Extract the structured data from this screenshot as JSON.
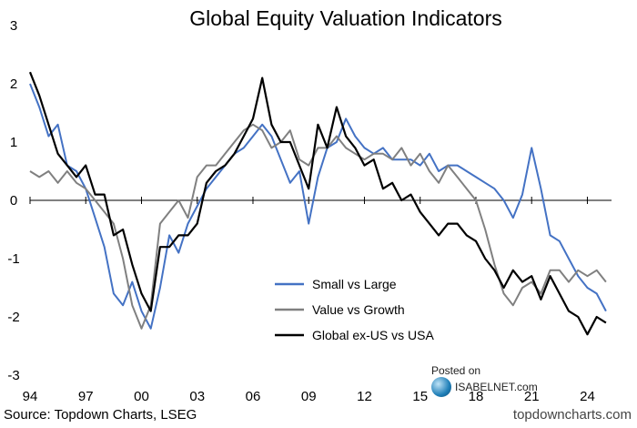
{
  "chart_data": {
    "type": "line",
    "title": "Global Equity Valuation Indicators",
    "xlabel": "",
    "ylabel": "",
    "xlim": [
      1994.0,
      2025.3
    ],
    "ylim": [
      -3,
      3
    ],
    "yticks": [
      3,
      2,
      1,
      0,
      -1,
      -2,
      -3
    ],
    "xticks": [
      {
        "label": "94",
        "value": 1994
      },
      {
        "label": "97",
        "value": 1997
      },
      {
        "label": "00",
        "value": 2000
      },
      {
        "label": "03",
        "value": 2003
      },
      {
        "label": "06",
        "value": 2006
      },
      {
        "label": "09",
        "value": 2009
      },
      {
        "label": "12",
        "value": 2012
      },
      {
        "label": "15",
        "value": 2015
      },
      {
        "label": "18",
        "value": 2018
      },
      {
        "label": "21",
        "value": 2021
      },
      {
        "label": "24",
        "value": 2024
      }
    ],
    "zero_line": true,
    "grid": false,
    "legend_position": "bottom-right",
    "series": [
      {
        "name": "Small vs Large",
        "color": "#4472C4",
        "x": [
          1994.0,
          1994.5,
          1995.0,
          1995.5,
          1996.0,
          1996.5,
          1997.0,
          1997.5,
          1998.0,
          1998.5,
          1999.0,
          1999.5,
          2000.0,
          2000.5,
          2001.0,
          2001.5,
          2002.0,
          2002.5,
          2003.0,
          2003.5,
          2004.0,
          2004.5,
          2005.0,
          2005.5,
          2006.0,
          2006.5,
          2007.0,
          2007.5,
          2008.0,
          2008.5,
          2009.0,
          2009.5,
          2010.0,
          2010.5,
          2011.0,
          2011.5,
          2012.0,
          2012.5,
          2013.0,
          2013.5,
          2014.0,
          2014.5,
          2015.0,
          2015.5,
          2016.0,
          2016.5,
          2017.0,
          2017.5,
          2018.0,
          2018.5,
          2019.0,
          2019.5,
          2020.0,
          2020.5,
          2021.0,
          2021.5,
          2022.0,
          2022.5,
          2023.0,
          2023.5,
          2024.0,
          2024.5,
          2025.0
        ],
        "y": [
          2.0,
          1.6,
          1.1,
          1.3,
          0.6,
          0.5,
          0.2,
          -0.3,
          -0.8,
          -1.6,
          -1.8,
          -1.4,
          -1.9,
          -2.2,
          -1.5,
          -0.6,
          -0.9,
          -0.4,
          -0.1,
          0.2,
          0.4,
          0.6,
          0.8,
          0.9,
          1.1,
          1.3,
          1.1,
          0.7,
          0.3,
          0.5,
          -0.4,
          0.4,
          0.9,
          1.0,
          1.4,
          1.1,
          0.9,
          0.8,
          0.9,
          0.7,
          0.7,
          0.7,
          0.6,
          0.8,
          0.5,
          0.6,
          0.6,
          0.5,
          0.4,
          0.3,
          0.2,
          0.0,
          -0.3,
          0.1,
          0.9,
          0.2,
          -0.6,
          -0.7,
          -1.0,
          -1.3,
          -1.5,
          -1.6,
          -1.9
        ]
      },
      {
        "name": "Value vs Growth",
        "color": "#808080",
        "x": [
          1994.0,
          1994.5,
          1995.0,
          1995.5,
          1996.0,
          1996.5,
          1997.0,
          1997.5,
          1998.0,
          1998.5,
          1999.0,
          1999.5,
          2000.0,
          2000.5,
          2001.0,
          2001.5,
          2002.0,
          2002.5,
          2003.0,
          2003.5,
          2004.0,
          2004.5,
          2005.0,
          2005.5,
          2006.0,
          2006.5,
          2007.0,
          2007.5,
          2008.0,
          2008.5,
          2009.0,
          2009.5,
          2010.0,
          2010.5,
          2011.0,
          2011.5,
          2012.0,
          2012.5,
          2013.0,
          2013.5,
          2014.0,
          2014.5,
          2015.0,
          2015.5,
          2016.0,
          2016.5,
          2017.0,
          2017.5,
          2018.0,
          2018.5,
          2019.0,
          2019.5,
          2020.0,
          2020.5,
          2021.0,
          2021.5,
          2022.0,
          2022.5,
          2023.0,
          2023.5,
          2024.0,
          2024.5,
          2025.0
        ],
        "y": [
          0.5,
          0.4,
          0.5,
          0.3,
          0.5,
          0.3,
          0.2,
          0.0,
          -0.2,
          -0.4,
          -1.0,
          -1.8,
          -2.2,
          -1.8,
          -0.4,
          -0.2,
          0.0,
          -0.3,
          0.4,
          0.6,
          0.6,
          0.8,
          1.0,
          1.2,
          1.3,
          1.2,
          0.9,
          1.0,
          1.2,
          0.7,
          0.6,
          0.9,
          0.9,
          1.1,
          0.9,
          0.8,
          0.7,
          0.8,
          0.8,
          0.7,
          0.9,
          0.6,
          0.8,
          0.5,
          0.3,
          0.6,
          0.4,
          0.2,
          0.0,
          -0.5,
          -1.1,
          -1.6,
          -1.8,
          -1.5,
          -1.4,
          -1.6,
          -1.2,
          -1.2,
          -1.4,
          -1.2,
          -1.3,
          -1.2,
          -1.4
        ]
      },
      {
        "name": "Global ex-US vs USA",
        "color": "#000000",
        "x": [
          1994.0,
          1994.5,
          1995.0,
          1995.5,
          1996.0,
          1996.5,
          1997.0,
          1997.5,
          1998.0,
          1998.5,
          1999.0,
          1999.5,
          2000.0,
          2000.5,
          2001.0,
          2001.5,
          2002.0,
          2002.5,
          2003.0,
          2003.5,
          2004.0,
          2004.5,
          2005.0,
          2005.5,
          2006.0,
          2006.5,
          2007.0,
          2007.5,
          2008.0,
          2008.5,
          2009.0,
          2009.5,
          2010.0,
          2010.5,
          2011.0,
          2011.5,
          2012.0,
          2012.5,
          2013.0,
          2013.5,
          2014.0,
          2014.5,
          2015.0,
          2015.5,
          2016.0,
          2016.5,
          2017.0,
          2017.5,
          2018.0,
          2018.5,
          2019.0,
          2019.5,
          2020.0,
          2020.5,
          2021.0,
          2021.5,
          2022.0,
          2022.5,
          2023.0,
          2023.5,
          2024.0,
          2024.5,
          2025.0
        ],
        "y": [
          2.2,
          1.8,
          1.3,
          0.8,
          0.6,
          0.4,
          0.6,
          0.1,
          0.1,
          -0.6,
          -0.5,
          -1.1,
          -1.6,
          -1.9,
          -0.8,
          -0.8,
          -0.6,
          -0.6,
          -0.4,
          0.3,
          0.5,
          0.6,
          0.8,
          1.1,
          1.4,
          2.1,
          1.3,
          1.0,
          1.0,
          0.6,
          0.2,
          1.3,
          0.9,
          1.6,
          1.1,
          0.9,
          0.6,
          0.7,
          0.2,
          0.3,
          0.0,
          0.1,
          -0.2,
          -0.4,
          -0.6,
          -0.4,
          -0.4,
          -0.6,
          -0.7,
          -1.0,
          -1.2,
          -1.5,
          -1.2,
          -1.4,
          -1.3,
          -1.7,
          -1.3,
          -1.6,
          -1.9,
          -2.0,
          -2.3,
          -2.0,
          -2.1
        ]
      }
    ]
  },
  "source": "Source: Topdown Charts, LSEG",
  "brand": "topdowncharts.com",
  "watermark": {
    "posted_on": "Posted on",
    "site": "ISABELNET.com"
  }
}
